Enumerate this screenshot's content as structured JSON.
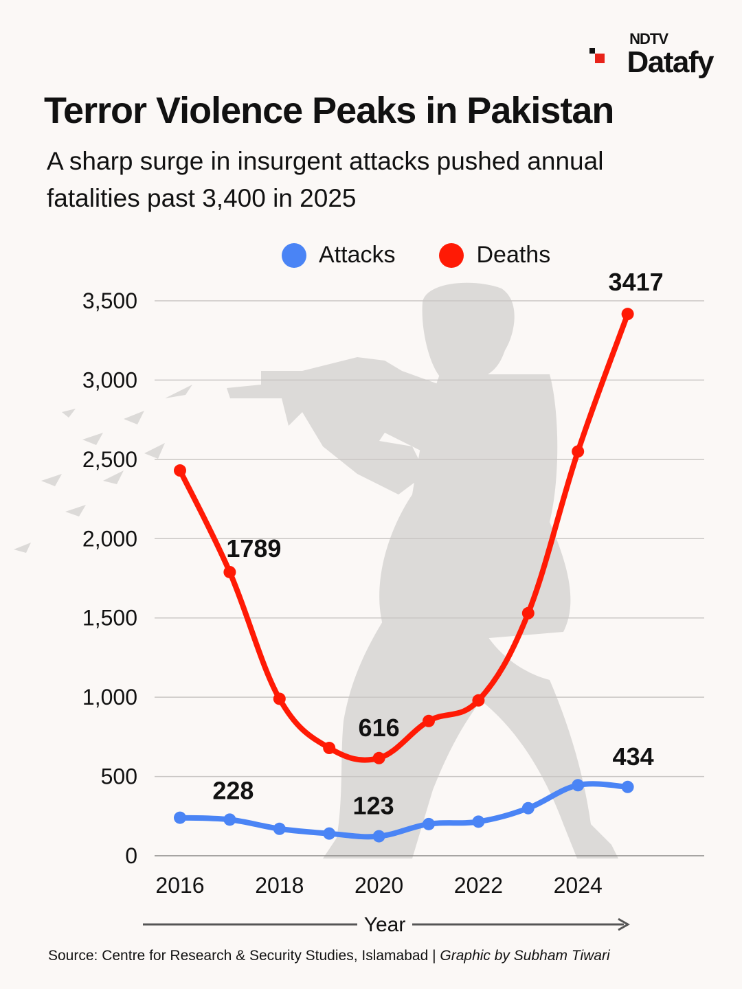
{
  "brand": {
    "line1": "NDTV",
    "line2": "Datafy"
  },
  "title": "Terror Violence Peaks in Pakistan",
  "subtitle": "A sharp surge in insurgent attacks pushed annual fatalities past 3,400 in 2025",
  "source": {
    "text": "Source: Centre for Research & Security Studies, Islamabad | ",
    "credit": "Graphic by Subham Tiwari"
  },
  "colors": {
    "attacks": "#4a84f5",
    "deaths": "#ff1a05",
    "grid": "#c9c6c4",
    "silhouette": "#dcdad8",
    "background": "#fbf8f6"
  },
  "chart_data": {
    "type": "line",
    "title": "Terror Violence Peaks in Pakistan",
    "xlabel": "Year",
    "ylabel": "",
    "x": [
      2016,
      2017,
      2018,
      2019,
      2020,
      2021,
      2022,
      2023,
      2024,
      2025
    ],
    "x_ticks": [
      "2016",
      "2018",
      "2020",
      "2022",
      "2024"
    ],
    "y_ticks": [
      "0",
      "500",
      "1,000",
      "1,500",
      "2,000",
      "2,500",
      "3,000",
      "3,500"
    ],
    "ylim": [
      0,
      3500
    ],
    "grid": true,
    "legend": "top-center",
    "series": [
      {
        "name": "Attacks",
        "values": [
          240,
          228,
          170,
          140,
          123,
          200,
          215,
          300,
          445,
          434
        ],
        "labels": [
          {
            "index": 1,
            "text": "228"
          },
          {
            "index": 4,
            "text": "123"
          },
          {
            "index": 9,
            "text": "434"
          }
        ]
      },
      {
        "name": "Deaths",
        "values": [
          2430,
          1789,
          990,
          680,
          616,
          850,
          980,
          1530,
          2550,
          3417
        ],
        "labels": [
          {
            "index": 1,
            "text": "1789"
          },
          {
            "index": 4,
            "text": "616"
          },
          {
            "index": 9,
            "text": "3417"
          }
        ]
      }
    ]
  }
}
